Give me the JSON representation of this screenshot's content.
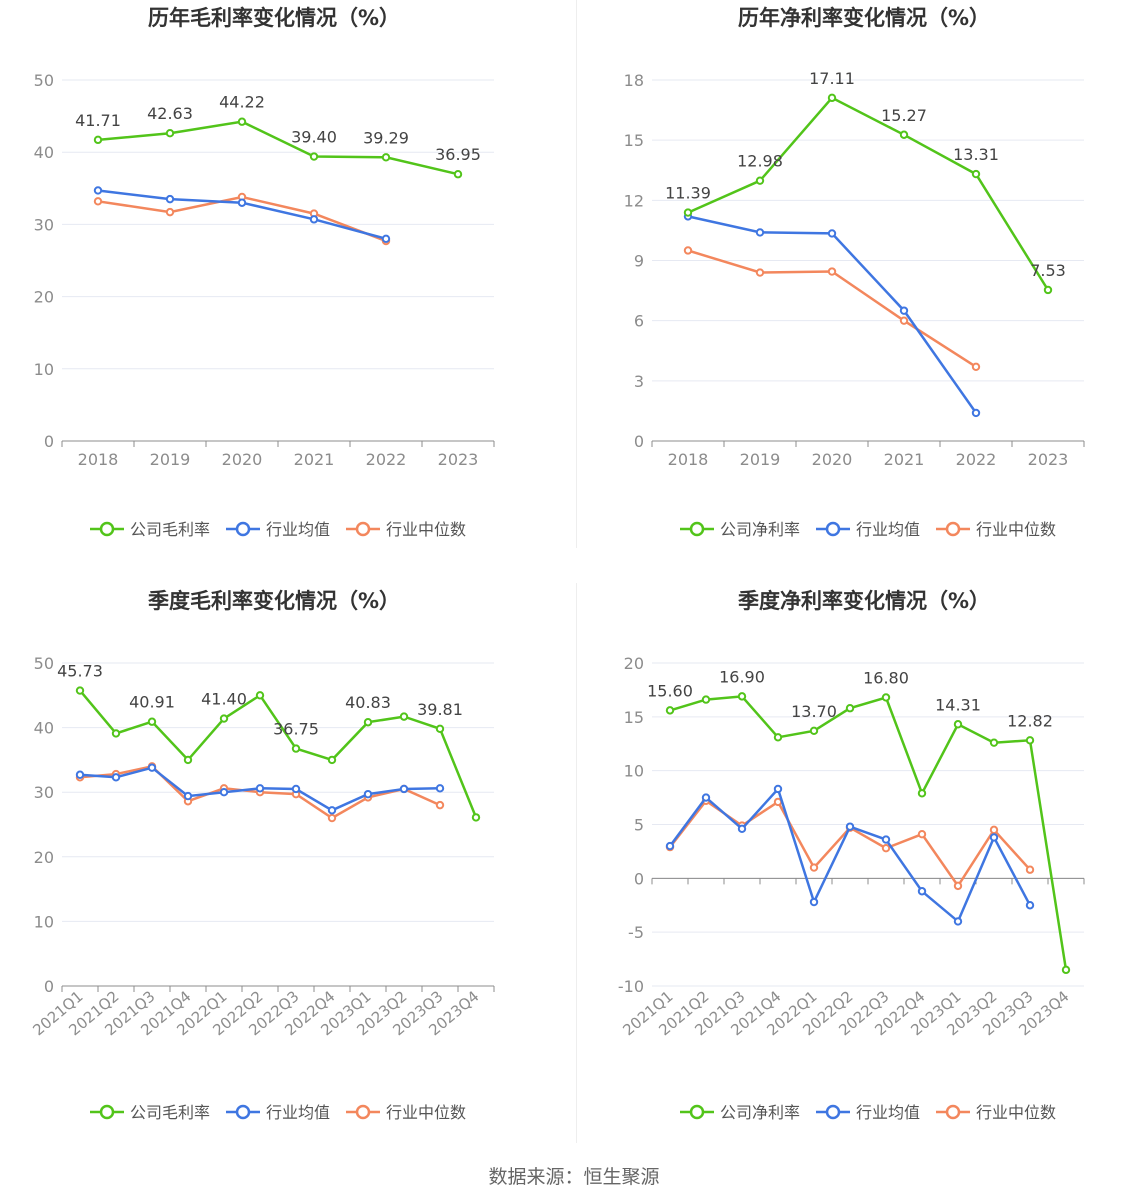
{
  "colors": {
    "company": "#52c41a",
    "avg": "#3f76e1",
    "median": "#f3875d",
    "grid": "#e6e9f2",
    "axis_text": "#8c8c8c",
    "title": "#333333",
    "label": "#444444"
  },
  "source": "数据来源：恒生聚源",
  "chart_data": [
    {
      "type": "line",
      "title": "历年毛利率变化情况（%）",
      "categories": [
        "2018",
        "2019",
        "2020",
        "2021",
        "2022",
        "2023"
      ],
      "ylim": [
        0,
        50
      ],
      "yticks": [
        0,
        10,
        20,
        30,
        40,
        50
      ],
      "series": [
        {
          "name": "公司毛利率",
          "color": "#52c41a",
          "labels": true,
          "values": [
            41.71,
            42.63,
            44.22,
            39.4,
            39.29,
            36.95
          ]
        },
        {
          "name": "行业均值",
          "color": "#3f76e1",
          "labels": false,
          "values": [
            34.7,
            33.5,
            33.0,
            30.7,
            28.0,
            null
          ]
        },
        {
          "name": "行业中位数",
          "color": "#f3875d",
          "labels": false,
          "values": [
            33.2,
            31.7,
            33.8,
            31.5,
            27.7,
            null
          ]
        }
      ],
      "rotate_x": false,
      "legend": "bottom-center",
      "grid": true
    },
    {
      "type": "line",
      "title": "历年净利率变化情况（%）",
      "categories": [
        "2018",
        "2019",
        "2020",
        "2021",
        "2022",
        "2023"
      ],
      "ylim": [
        0,
        18
      ],
      "yticks": [
        0,
        3,
        6,
        9,
        12,
        15,
        18
      ],
      "series": [
        {
          "name": "公司净利率",
          "color": "#52c41a",
          "labels": true,
          "values": [
            11.39,
            12.98,
            17.11,
            15.27,
            13.31,
            7.53
          ]
        },
        {
          "name": "行业均值",
          "color": "#3f76e1",
          "labels": false,
          "values": [
            11.2,
            10.4,
            10.35,
            6.5,
            1.4,
            null
          ]
        },
        {
          "name": "行业中位数",
          "color": "#f3875d",
          "labels": false,
          "values": [
            9.5,
            8.4,
            8.45,
            6.0,
            3.7,
            null
          ]
        }
      ],
      "rotate_x": false,
      "legend": "bottom-center",
      "grid": true
    },
    {
      "type": "line",
      "title": "季度毛利率变化情况（%）",
      "categories": [
        "2021Q1",
        "2021Q2",
        "2021Q3",
        "2021Q4",
        "2022Q1",
        "2022Q2",
        "2022Q3",
        "2022Q4",
        "2023Q1",
        "2023Q2",
        "2023Q3",
        "2023Q4"
      ],
      "ylim": [
        0,
        50
      ],
      "yticks": [
        0,
        10,
        20,
        30,
        40,
        50
      ],
      "series": [
        {
          "name": "公司毛利率",
          "color": "#52c41a",
          "labels": [
            0,
            2,
            4,
            6,
            8,
            10
          ],
          "values": [
            45.73,
            39.1,
            40.91,
            35.0,
            41.4,
            45.0,
            36.75,
            35.0,
            40.83,
            41.7,
            39.81,
            26.1
          ]
        },
        {
          "name": "行业均值",
          "color": "#3f76e1",
          "labels": false,
          "values": [
            32.7,
            32.3,
            33.8,
            29.4,
            30.0,
            30.6,
            30.5,
            27.2,
            29.7,
            30.5,
            30.6,
            null
          ]
        },
        {
          "name": "行业中位数",
          "color": "#f3875d",
          "labels": false,
          "values": [
            32.3,
            32.8,
            34.0,
            28.6,
            30.6,
            30.0,
            29.7,
            26.0,
            29.2,
            30.5,
            28.0,
            null
          ]
        }
      ],
      "rotate_x": true,
      "legend": "bottom-center",
      "grid": true
    },
    {
      "type": "line",
      "title": "季度净利率变化情况（%）",
      "categories": [
        "2021Q1",
        "2021Q2",
        "2021Q3",
        "2021Q4",
        "2022Q1",
        "2022Q2",
        "2022Q3",
        "2022Q4",
        "2023Q1",
        "2023Q2",
        "2023Q3",
        "2023Q4"
      ],
      "ylim": [
        -10,
        20
      ],
      "yticks": [
        -10,
        -5,
        0,
        5,
        10,
        15,
        20
      ],
      "series": [
        {
          "name": "公司净利率",
          "color": "#52c41a",
          "labels": [
            0,
            2,
            4,
            6,
            8,
            10
          ],
          "values": [
            15.6,
            16.6,
            16.9,
            13.1,
            13.7,
            15.8,
            16.8,
            7.9,
            14.31,
            12.6,
            12.82,
            -8.5
          ]
        },
        {
          "name": "行业均值",
          "color": "#3f76e1",
          "labels": false,
          "values": [
            3.0,
            7.5,
            4.6,
            8.3,
            -2.2,
            4.8,
            3.6,
            -1.2,
            -4.0,
            3.8,
            -2.5,
            null
          ]
        },
        {
          "name": "行业中位数",
          "color": "#f3875d",
          "labels": false,
          "values": [
            2.9,
            7.2,
            4.9,
            7.1,
            1.0,
            4.7,
            2.8,
            4.1,
            -0.7,
            4.5,
            0.8,
            null
          ]
        }
      ],
      "rotate_x": true,
      "legend": "bottom-center",
      "grid": true
    }
  ]
}
